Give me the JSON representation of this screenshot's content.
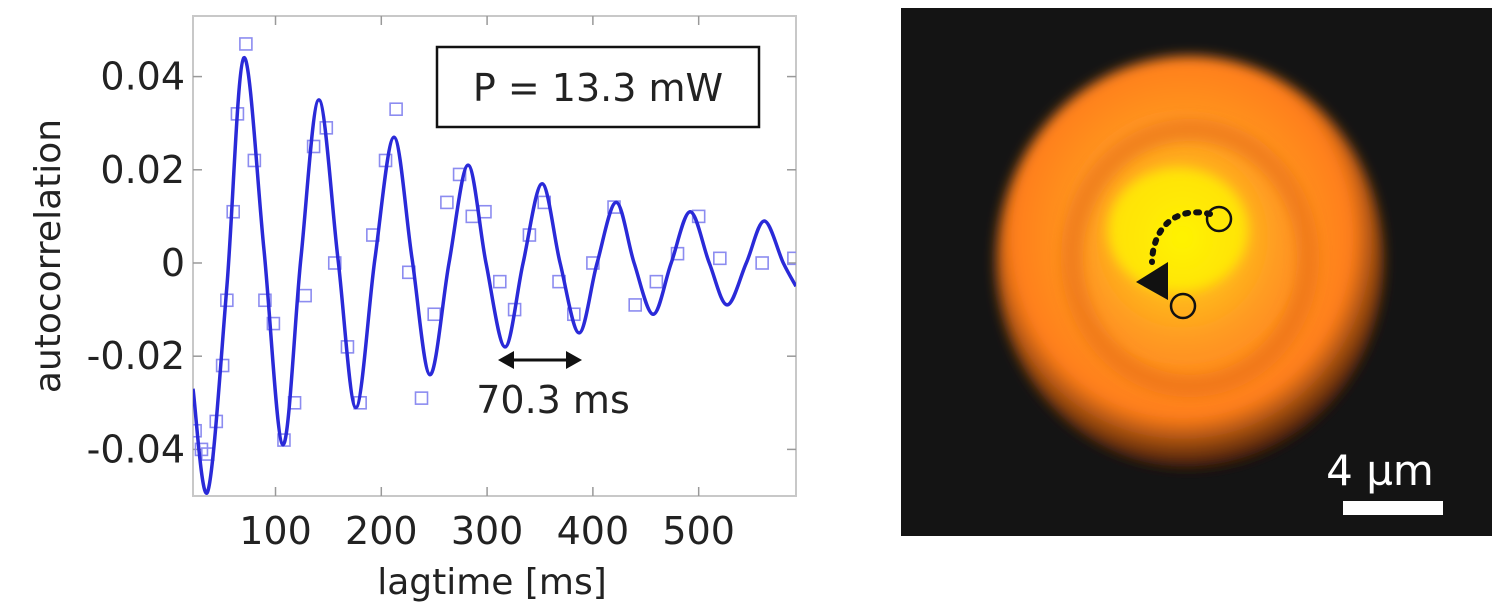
{
  "chart_data": {
    "type": "line",
    "xlabel": "lagtime [ms]",
    "ylabel": "autocorrelation",
    "xlim": [
      22,
      592
    ],
    "ylim": [
      -0.05,
      0.053
    ],
    "x_ticks": [
      "100",
      "200",
      "300",
      "400",
      "500"
    ],
    "y_ticks": [
      "0.04",
      "0.02",
      "0",
      "-0.02",
      "-0.04"
    ],
    "legend_box": "P = 13.3 mW",
    "annotation": "70.3 ms",
    "period_ms": 70.3,
    "series": [
      {
        "kind": "fit-line",
        "color": "#2a2ad8",
        "x": [
          22,
          36,
          54,
          70,
          89,
          107,
          124,
          141,
          159,
          176,
          194,
          212,
          229,
          246,
          264,
          282,
          299,
          317,
          334,
          352,
          369,
          387,
          404,
          422,
          439,
          457,
          474,
          492,
          510,
          527,
          545,
          562,
          580,
          592
        ],
        "y": [
          -0.027,
          -0.049,
          -0.005,
          0.044,
          0.003,
          -0.039,
          0.001,
          0.035,
          0.001,
          -0.031,
          0.001,
          0.027,
          0.001,
          -0.024,
          0.0,
          0.021,
          0.0,
          -0.018,
          0.0,
          0.017,
          0.0,
          -0.015,
          0.0,
          0.013,
          0.0,
          -0.011,
          0.0,
          0.011,
          0.0,
          -0.009,
          0.0,
          0.009,
          0.0,
          -0.005
        ]
      },
      {
        "kind": "data-points",
        "color": "#8c8cf0",
        "x": [
          24,
          30,
          36,
          44,
          50,
          54,
          60,
          64,
          72,
          80,
          90,
          98,
          108,
          118,
          128,
          136,
          148,
          156,
          168,
          180,
          192,
          204,
          214,
          226,
          238,
          250,
          262,
          274,
          286,
          298,
          312,
          326,
          340,
          354,
          368,
          382,
          400,
          420,
          440,
          460,
          480,
          500,
          520,
          560,
          590
        ],
        "y": [
          -0.036,
          -0.04,
          -0.041,
          -0.034,
          -0.022,
          -0.008,
          0.011,
          0.032,
          0.047,
          0.022,
          -0.008,
          -0.013,
          -0.038,
          -0.03,
          -0.007,
          0.025,
          0.029,
          0.0,
          -0.018,
          -0.03,
          0.006,
          0.022,
          0.033,
          -0.002,
          -0.029,
          -0.011,
          0.013,
          0.019,
          0.01,
          0.011,
          -0.004,
          -0.01,
          0.006,
          0.013,
          -0.004,
          -0.011,
          0.0,
          0.012,
          -0.009,
          -0.004,
          0.002,
          0.01,
          0.001,
          0.0,
          0.001
        ]
      }
    ]
  },
  "micrograph": {
    "scalebar_label": "4 µm",
    "background": "#141414",
    "glow_colors": [
      "#fff600",
      "#ffbc12",
      "#ff9222",
      "#ff7a18"
    ]
  }
}
